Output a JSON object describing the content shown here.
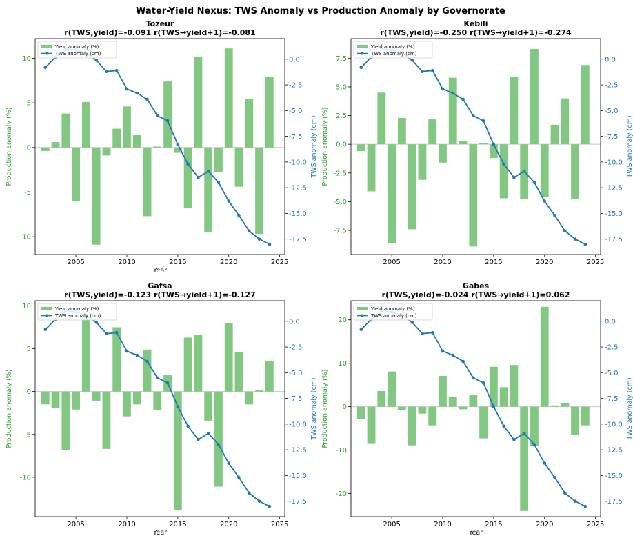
{
  "figure": {
    "title": "Water-Yield Nexus: TWS Anomaly vs Production Anomaly by Governorate"
  },
  "colors": {
    "bar": "#82c882",
    "line": "#1f77b4",
    "left_axis": "#2ca02c",
    "right_axis": "#1f77b4"
  },
  "chart_data": [
    {
      "type": "bar+line",
      "name": "Tozeur",
      "subtitle": "r(TWS,yield)=-0.091  r(TWS→yield+1)=-0.081",
      "xlabel": "Year",
      "ylabel_left": "Production anomaly (%)",
      "ylabel_right": "TWS anomaly (cm)",
      "xlim": [
        2001,
        2025.5
      ],
      "xticks": [
        2005,
        2010,
        2015,
        2020,
        2025
      ],
      "ylim_left": [
        -12,
        12.2
      ],
      "yticks_left": [
        -10,
        -5,
        0,
        5,
        10
      ],
      "ylim_right": [
        -19,
        2
      ],
      "yticks_right": [
        0.0,
        -2.5,
        -5.0,
        -7.5,
        -10.0,
        -12.5,
        -15.0,
        -17.5
      ],
      "legend": {
        "position": "upper-left",
        "entries": [
          "Yield anomaly (%)",
          "TWS anomaly (cm)"
        ]
      },
      "years": [
        2002,
        2003,
        2004,
        2005,
        2006,
        2007,
        2008,
        2009,
        2010,
        2011,
        2012,
        2013,
        2014,
        2015,
        2016,
        2017,
        2018,
        2019,
        2020,
        2021,
        2022,
        2023,
        2024
      ],
      "yield": [
        -0.4,
        0.6,
        3.8,
        -6.0,
        5.1,
        -10.9,
        -0.9,
        2.1,
        4.6,
        1.4,
        -7.7,
        0.1,
        7.4,
        -0.6,
        -6.8,
        10.2,
        -9.5,
        -2.8,
        11.1,
        -4.4,
        5.4,
        -9.7,
        7.9
      ],
      "tws": [
        -0.8,
        0.2,
        1.0,
        0.9,
        0.6,
        -0.1,
        -1.2,
        -1.1,
        -2.9,
        -3.3,
        -3.9,
        -5.5,
        -6.0,
        -8.3,
        -10.2,
        -11.5,
        -10.9,
        -12.0,
        -13.8,
        -15.2,
        -16.7,
        -17.5,
        -18.0
      ]
    },
    {
      "type": "bar+line",
      "name": "Kebili",
      "subtitle": "r(TWS,yield)=-0.250  r(TWS→yield+1)=-0.274",
      "xlabel": "",
      "ylabel_left": "Production anomaly (%)",
      "ylabel_right": "TWS anomaly (cm)",
      "xlim": [
        2001,
        2025.5
      ],
      "xticks": [
        2005,
        2010,
        2015,
        2020,
        2025
      ],
      "ylim_left": [
        -9.6,
        9.2
      ],
      "yticks_left": [
        -7.5,
        -5.0,
        -2.5,
        0.0,
        2.5,
        5.0,
        7.5
      ],
      "ylim_right": [
        -19,
        2
      ],
      "yticks_right": [
        0.0,
        -2.5,
        -5.0,
        -7.5,
        -10.0,
        -12.5,
        -15.0,
        -17.5
      ],
      "legend": {
        "position": "upper-left",
        "entries": [
          "Yield anomaly (%)",
          "TWS anomaly (cm)"
        ]
      },
      "years": [
        2002,
        2003,
        2004,
        2005,
        2006,
        2007,
        2008,
        2009,
        2010,
        2011,
        2012,
        2013,
        2014,
        2015,
        2016,
        2017,
        2018,
        2019,
        2020,
        2021,
        2022,
        2023,
        2024
      ],
      "yield": [
        -0.6,
        -4.1,
        4.5,
        -8.6,
        2.3,
        -7.4,
        -3.1,
        2.2,
        -1.6,
        5.8,
        0.3,
        -8.9,
        0.1,
        -1.2,
        -4.7,
        5.9,
        -4.8,
        8.3,
        -4.6,
        1.7,
        4.0,
        -4.8,
        6.9
      ],
      "tws": [
        -0.8,
        0.2,
        1.0,
        0.9,
        0.6,
        -0.1,
        -1.2,
        -1.1,
        -2.9,
        -3.3,
        -3.9,
        -5.5,
        -6.0,
        -8.3,
        -10.2,
        -11.5,
        -10.9,
        -12.0,
        -13.8,
        -15.2,
        -16.7,
        -17.5,
        -18.0
      ]
    },
    {
      "type": "bar+line",
      "name": "Gafsa",
      "subtitle": "r(TWS,yield)=-0.123  r(TWS→yield+1)=-0.127",
      "xlabel": "Year",
      "ylabel_left": "Production anomaly (%)",
      "ylabel_right": "TWS anomaly (cm)",
      "xlim": [
        2001,
        2025.5
      ],
      "xticks": [
        2005,
        2010,
        2015,
        2020,
        2025
      ],
      "ylim_left": [
        -14.6,
        10.6
      ],
      "yticks_left": [
        -10,
        -5,
        0,
        5,
        10
      ],
      "ylim_right": [
        -19,
        2
      ],
      "yticks_right": [
        0.0,
        -2.5,
        -5.0,
        -7.5,
        -10.0,
        -12.5,
        -15.0,
        -17.5
      ],
      "legend": {
        "position": "upper-left",
        "entries": [
          "Yield anomaly (%)",
          "TWS anomaly (cm)"
        ]
      },
      "years": [
        2002,
        2003,
        2004,
        2005,
        2006,
        2007,
        2008,
        2009,
        2010,
        2011,
        2012,
        2013,
        2014,
        2015,
        2016,
        2017,
        2018,
        2019,
        2020,
        2021,
        2022,
        2023,
        2024
      ],
      "yield": [
        -1.5,
        -1.9,
        -6.8,
        -2.1,
        8.7,
        -1.1,
        -6.7,
        7.5,
        -2.9,
        -1.5,
        4.9,
        -2.2,
        1.9,
        -13.8,
        6.3,
        6.6,
        -3.4,
        -11.1,
        8.0,
        4.6,
        -1.5,
        0.2,
        3.6
      ],
      "tws": [
        -0.8,
        0.2,
        1.0,
        0.9,
        0.6,
        -0.1,
        -1.2,
        -1.1,
        -2.9,
        -3.3,
        -3.9,
        -5.5,
        -6.0,
        -8.3,
        -10.2,
        -11.5,
        -10.9,
        -12.0,
        -13.8,
        -15.2,
        -16.7,
        -17.5,
        -18.0
      ]
    },
    {
      "type": "bar+line",
      "name": "Gabes",
      "subtitle": "r(TWS,yield)=-0.024  r(TWS→yield+1)=0.062",
      "xlabel": "Year",
      "ylabel_left": "Production anomaly (%)",
      "ylabel_right": "TWS anomaly (cm)",
      "xlim": [
        2001,
        2025.5
      ],
      "xticks": [
        2005,
        2010,
        2015,
        2020,
        2025
      ],
      "ylim_left": [
        -25.3,
        24.4
      ],
      "yticks_left": [
        -20,
        -10,
        0,
        10,
        20
      ],
      "ylim_right": [
        -19,
        2
      ],
      "yticks_right": [
        0.0,
        -2.5,
        -5.0,
        -7.5,
        -10.0,
        -12.5,
        -15.0,
        -17.5
      ],
      "legend": {
        "position": "upper-left",
        "entries": [
          "Yield anomaly (%)",
          "TWS anomaly (cm)"
        ]
      },
      "years": [
        2002,
        2003,
        2004,
        2005,
        2006,
        2007,
        2008,
        2009,
        2010,
        2011,
        2012,
        2013,
        2014,
        2015,
        2016,
        2017,
        2018,
        2019,
        2020,
        2021,
        2022,
        2023,
        2024
      ],
      "yield": [
        -2.8,
        -8.4,
        3.6,
        8.1,
        -0.8,
        -8.9,
        -1.6,
        -4.3,
        7.1,
        2.2,
        -0.6,
        2.8,
        -7.3,
        9.2,
        4.5,
        9.6,
        -24.0,
        -9.0,
        23.0,
        0.3,
        0.8,
        -6.4,
        -4.3
      ],
      "tws": [
        -0.8,
        0.2,
        1.0,
        0.9,
        0.6,
        -0.1,
        -1.2,
        -1.1,
        -2.9,
        -3.3,
        -3.9,
        -5.5,
        -6.0,
        -8.3,
        -10.2,
        -11.5,
        -10.9,
        -12.0,
        -13.8,
        -15.2,
        -16.7,
        -17.5,
        -18.0
      ]
    }
  ]
}
